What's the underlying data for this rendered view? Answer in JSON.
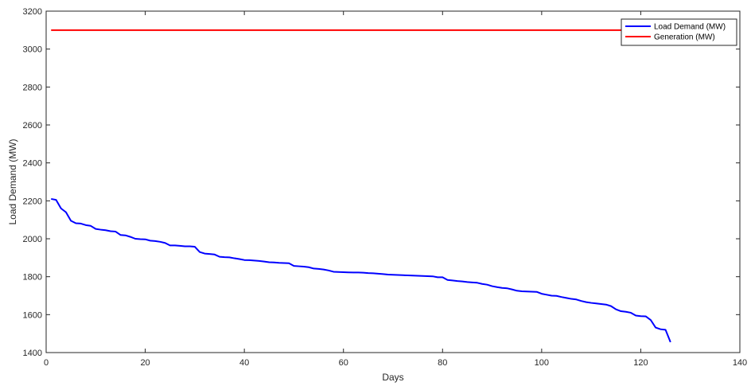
{
  "chart_data": {
    "type": "line",
    "title": "",
    "xlabel": "Days",
    "ylabel": "Load Demand (MW)",
    "xlim": [
      0,
      140
    ],
    "ylim": [
      1400,
      3200
    ],
    "xticks": [
      0,
      20,
      40,
      60,
      80,
      100,
      120,
      140
    ],
    "yticks": [
      1400,
      1600,
      1800,
      2000,
      2200,
      2400,
      2600,
      2800,
      3000,
      3200
    ],
    "grid": false,
    "legend_position": "top-right",
    "series": [
      {
        "name": "Load Demand (MW)",
        "color": "#0000ff",
        "x": [
          1,
          2,
          3,
          4,
          5,
          6,
          7,
          8,
          9,
          10,
          11,
          12,
          13,
          14,
          15,
          16,
          17,
          18,
          19,
          20,
          21,
          22,
          23,
          24,
          25,
          26,
          27,
          28,
          29,
          30,
          31,
          32,
          33,
          34,
          35,
          36,
          37,
          38,
          39,
          40,
          41,
          42,
          43,
          44,
          45,
          46,
          47,
          48,
          49,
          50,
          51,
          52,
          53,
          54,
          55,
          56,
          57,
          58,
          59,
          60,
          61,
          62,
          63,
          64,
          65,
          66,
          67,
          68,
          69,
          70,
          71,
          72,
          73,
          74,
          75,
          76,
          77,
          78,
          79,
          80,
          81,
          82,
          83,
          84,
          85,
          86,
          87,
          88,
          89,
          90,
          91,
          92,
          93,
          94,
          95,
          96,
          97,
          98,
          99,
          100,
          101,
          102,
          103,
          104,
          105,
          106,
          107,
          108,
          109,
          110,
          111,
          112,
          113,
          114,
          115,
          116,
          117,
          118,
          119,
          120,
          121,
          122,
          123,
          124,
          125,
          126
        ],
        "y": [
          2210,
          2205,
          2160,
          2140,
          2095,
          2082,
          2080,
          2072,
          2068,
          2052,
          2048,
          2045,
          2040,
          2038,
          2020,
          2018,
          2010,
          2000,
          1998,
          1997,
          1990,
          1988,
          1984,
          1978,
          1965,
          1965,
          1963,
          1960,
          1960,
          1958,
          1930,
          1922,
          1920,
          1917,
          1905,
          1903,
          1902,
          1897,
          1893,
          1888,
          1887,
          1885,
          1883,
          1880,
          1876,
          1875,
          1873,
          1872,
          1871,
          1857,
          1855,
          1853,
          1850,
          1843,
          1841,
          1838,
          1833,
          1826,
          1825,
          1824,
          1823,
          1822,
          1822,
          1821,
          1819,
          1818,
          1816,
          1814,
          1811,
          1810,
          1809,
          1808,
          1807,
          1806,
          1805,
          1804,
          1803,
          1802,
          1797,
          1797,
          1783,
          1780,
          1777,
          1775,
          1772,
          1770,
          1768,
          1762,
          1758,
          1750,
          1745,
          1741,
          1739,
          1733,
          1726,
          1723,
          1722,
          1721,
          1720,
          1710,
          1705,
          1700,
          1699,
          1693,
          1688,
          1683,
          1680,
          1672,
          1666,
          1662,
          1659,
          1656,
          1653,
          1645,
          1628,
          1618,
          1615,
          1610,
          1595,
          1592,
          1591,
          1572,
          1532,
          1523,
          1520,
          1455
        ]
      },
      {
        "name": "Generation (MW)",
        "color": "#ff0000",
        "x": [
          1,
          126
        ],
        "y": [
          3100,
          3100
        ]
      }
    ]
  }
}
